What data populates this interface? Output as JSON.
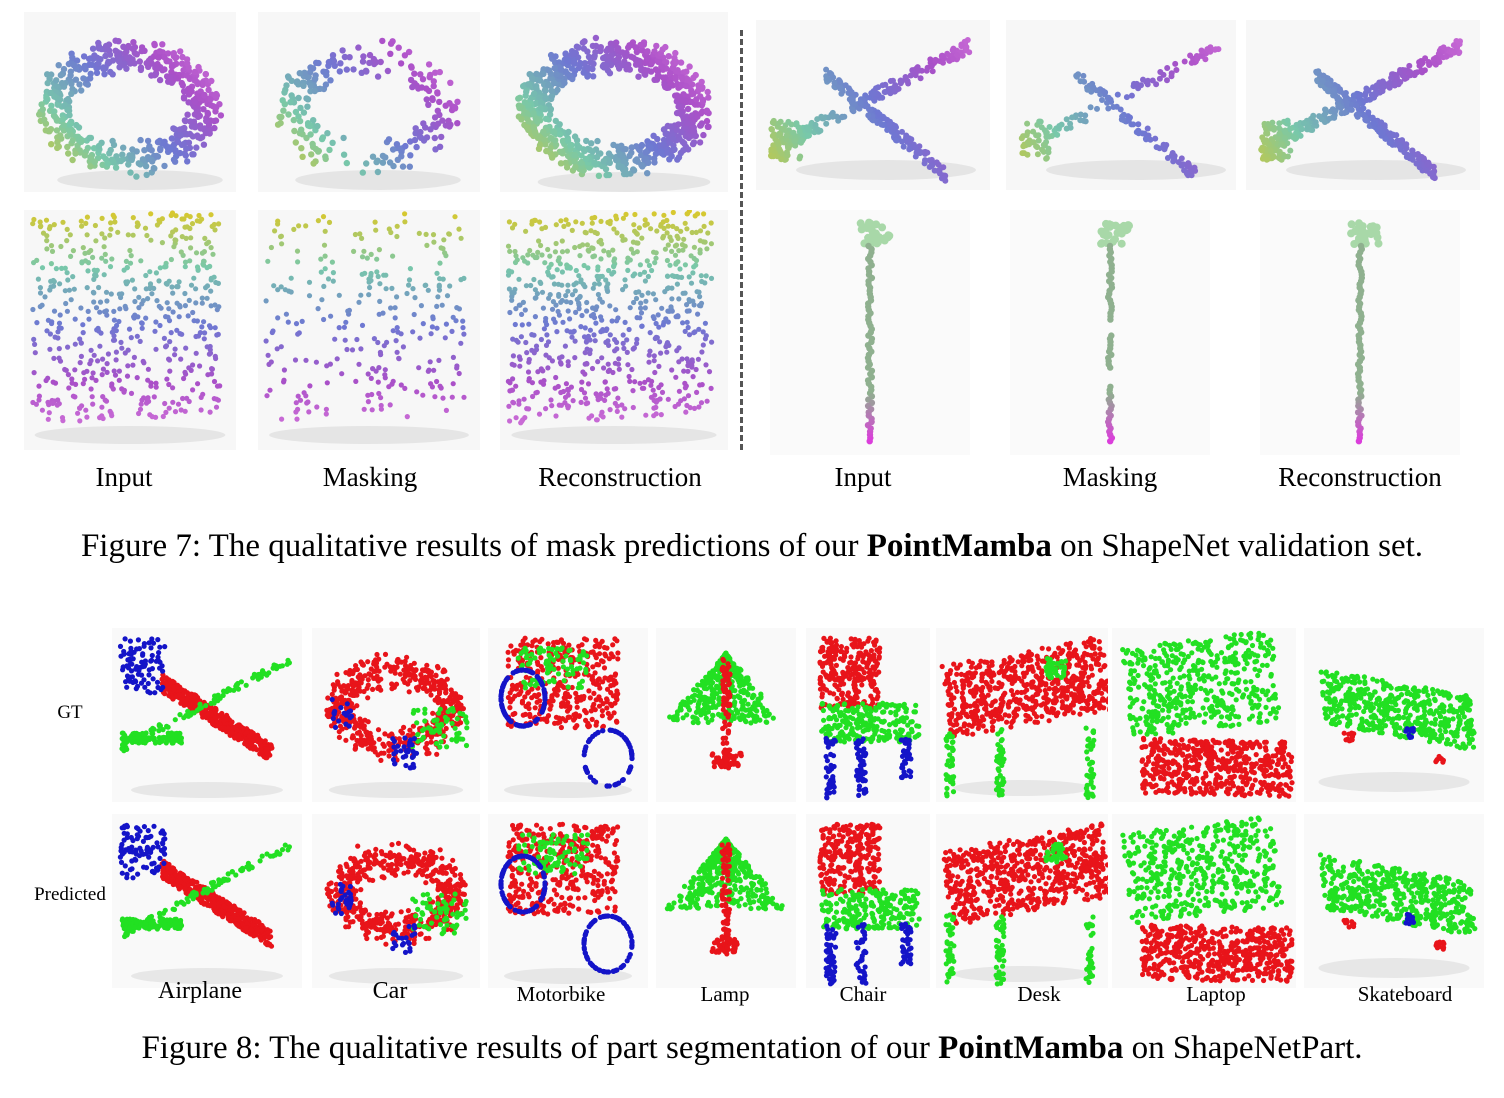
{
  "figure7": {
    "labels": [
      "Input",
      "Masking",
      "Reconstruction",
      "Input",
      "Masking",
      "Reconstruction"
    ],
    "caption_prefix": "Figure 7: The qualitative results of mask predictions of our ",
    "caption_bold": "PointMamba",
    "caption_suffix": " on ShapeNet validation set."
  },
  "figure8": {
    "row_labels": [
      "GT",
      "Predicted"
    ],
    "categories": [
      "Airplane",
      "Car",
      "Motorbike",
      "Lamp",
      "Chair",
      "Desk",
      "Laptop",
      "Skateboard"
    ],
    "caption_prefix": "Figure 8: The qualitative results of part segmentation of our ",
    "caption_bold": "PointMamba",
    "caption_suffix": " on ShapeNetPart."
  },
  "colors": {
    "seg_red": "#e8141a",
    "seg_green": "#22e022",
    "seg_blue": "#1414c8"
  }
}
